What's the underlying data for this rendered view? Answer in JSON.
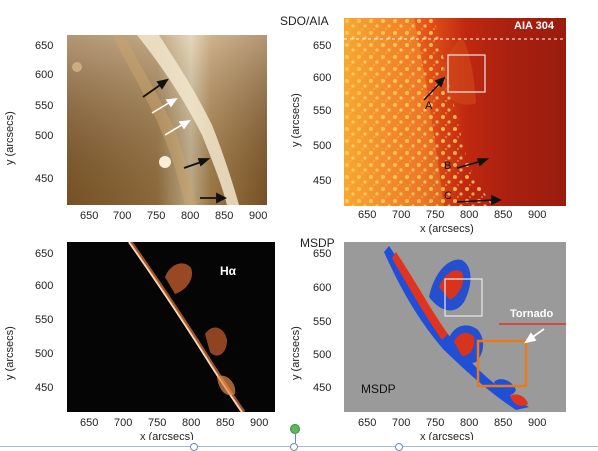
{
  "figure": {
    "titles": {
      "top_right": "SDO/AIA",
      "bottom_right": "MSDP"
    },
    "panels": [
      {
        "id": "top-left",
        "label": "",
        "x_ticks": [
          "650",
          "700",
          "750",
          "800",
          "850",
          "900"
        ],
        "y_ticks": [
          "650",
          "600",
          "550",
          "500",
          "450"
        ],
        "x_label": "",
        "y_label": "y (arcsecs)"
      },
      {
        "id": "top-right",
        "label": "AIA 304",
        "points": [
          "A",
          "B",
          "C"
        ],
        "x_ticks": [
          "650",
          "700",
          "750",
          "800",
          "850",
          "900"
        ],
        "y_ticks": [
          "650",
          "600",
          "550",
          "500",
          "450"
        ],
        "x_label": "x (arcsecs)",
        "y_label": "y (arcsecs)"
      },
      {
        "id": "bottom-left",
        "label": "Hα",
        "x_ticks": [
          "650",
          "700",
          "750",
          "800",
          "850",
          "900"
        ],
        "y_ticks": [
          "650",
          "600",
          "550",
          "500",
          "450"
        ],
        "x_label": "x (arcsecs)",
        "y_label": "y (arcsecs)"
      },
      {
        "id": "bottom-right",
        "label": "MSDP",
        "annotation": "Tornado",
        "x_ticks": [
          "650",
          "700",
          "750",
          "800",
          "850",
          "900"
        ],
        "y_ticks": [
          "650",
          "600",
          "550",
          "500",
          "450"
        ],
        "x_label": "x (arcsecs)",
        "y_label": "y (arcsecs)"
      }
    ]
  }
}
